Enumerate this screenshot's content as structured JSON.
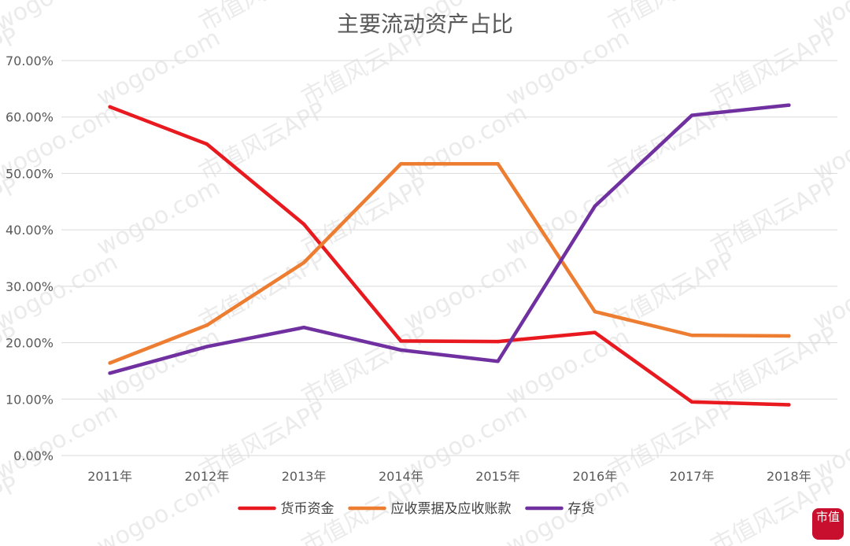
{
  "chart_data": {
    "type": "line",
    "title": "主要流动资产占比",
    "categories": [
      "2011年",
      "2012年",
      "2013年",
      "2014年",
      "2015年",
      "2016年",
      "2017年",
      "2018年"
    ],
    "yticks": [
      "0.00%",
      "10.00%",
      "20.00%",
      "30.00%",
      "40.00%",
      "50.00%",
      "60.00%",
      "70.00%"
    ],
    "ylim": [
      0,
      70
    ],
    "grid": true,
    "legend_position": "bottom",
    "series": [
      {
        "name": "货币资金",
        "color": "#e8191f",
        "values": [
          61.8,
          55.2,
          41.0,
          20.3,
          20.2,
          21.8,
          9.5,
          9.0
        ]
      },
      {
        "name": "应收票据及应收账款",
        "color": "#ed7d31",
        "values": [
          16.4,
          23.1,
          34.2,
          51.7,
          51.7,
          25.5,
          21.3,
          21.2
        ]
      },
      {
        "name": "存货",
        "color": "#7030a0",
        "values": [
          14.6,
          19.3,
          22.7,
          18.7,
          16.7,
          44.2,
          60.3,
          62.1
        ]
      }
    ]
  },
  "watermark": {
    "cn": "市值风云APP",
    "en": "wogoo.com"
  },
  "logo": {
    "text": "市值",
    "icon": "fengyun-logo-icon"
  }
}
